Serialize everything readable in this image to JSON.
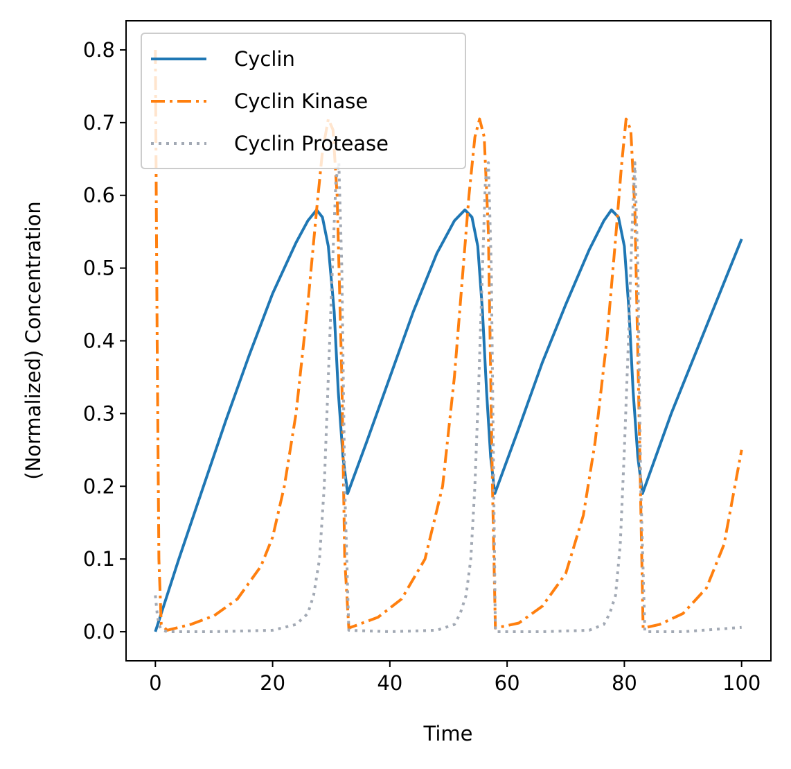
{
  "chart_data": {
    "type": "line",
    "title": "",
    "xlabel": "Time",
    "ylabel": "(Normalized) Concentration",
    "xlim": [
      -5,
      105
    ],
    "ylim": [
      -0.04,
      0.84
    ],
    "xticks": [
      0,
      20,
      40,
      60,
      80,
      100
    ],
    "yticks": [
      0.0,
      0.1,
      0.2,
      0.3,
      0.4,
      0.5,
      0.6,
      0.7,
      0.8
    ],
    "xtick_labels": [
      "0",
      "20",
      "40",
      "60",
      "80",
      "100"
    ],
    "ytick_labels": [
      "0.0",
      "0.1",
      "0.2",
      "0.3",
      "0.4",
      "0.5",
      "0.6",
      "0.7",
      "0.8"
    ],
    "grid": false,
    "legend_position": "top-left",
    "series": [
      {
        "name": "Cyclin",
        "color": "#1f77b4",
        "style": "solid",
        "x": [
          0,
          4,
          8,
          12,
          16,
          20,
          24,
          26,
          27.5,
          28.5,
          29.5,
          30.5,
          31.2,
          32,
          32.8,
          36,
          40,
          44,
          48,
          51,
          52.8,
          54,
          55,
          55.8,
          56.5,
          57.2,
          57.9,
          62,
          66,
          70,
          74,
          76.5,
          77.8,
          79,
          80,
          80.8,
          81.5,
          82.3,
          83.1,
          88,
          94,
          100
        ],
        "y": [
          0.0,
          0.1,
          0.195,
          0.29,
          0.38,
          0.465,
          0.535,
          0.565,
          0.58,
          0.57,
          0.53,
          0.44,
          0.33,
          0.24,
          0.19,
          0.26,
          0.35,
          0.44,
          0.52,
          0.565,
          0.58,
          0.57,
          0.53,
          0.44,
          0.33,
          0.24,
          0.19,
          0.28,
          0.37,
          0.45,
          0.525,
          0.565,
          0.58,
          0.57,
          0.53,
          0.44,
          0.33,
          0.24,
          0.19,
          0.3,
          0.42,
          0.54
        ]
      },
      {
        "name": "Cyclin Kinase",
        "color": "#ff7f0e",
        "style": "dashdot",
        "x": [
          0,
          0.3,
          0.6,
          1,
          2,
          6,
          10,
          14,
          18,
          20,
          22,
          24,
          26,
          27.5,
          28.5,
          29.5,
          30.3,
          31,
          31.8,
          32.3,
          33,
          38,
          42,
          46,
          49,
          51,
          52.5,
          53.5,
          54.5,
          55.3,
          56.1,
          56.8,
          57.5,
          58,
          62,
          66,
          70,
          73,
          75,
          77,
          78.5,
          79.5,
          80.3,
          81.1,
          81.8,
          82.5,
          83.2,
          86,
          90,
          94,
          97,
          100
        ],
        "y": [
          0.8,
          0.4,
          0.1,
          0.01,
          0.002,
          0.01,
          0.022,
          0.045,
          0.09,
          0.13,
          0.2,
          0.3,
          0.45,
          0.58,
          0.66,
          0.705,
          0.69,
          0.6,
          0.35,
          0.1,
          0.005,
          0.02,
          0.045,
          0.1,
          0.2,
          0.35,
          0.5,
          0.6,
          0.68,
          0.705,
          0.68,
          0.55,
          0.2,
          0.005,
          0.012,
          0.035,
          0.08,
          0.16,
          0.26,
          0.4,
          0.54,
          0.64,
          0.705,
          0.69,
          0.58,
          0.3,
          0.005,
          0.01,
          0.025,
          0.06,
          0.12,
          0.25
        ]
      },
      {
        "name": "Cyclin Protease",
        "color": "#a2a9b4",
        "style": "dotted",
        "x": [
          0,
          0.3,
          0.6,
          1,
          2,
          10,
          20,
          24,
          26,
          27,
          28,
          28.8,
          29.5,
          30.2,
          30.8,
          31.3,
          31.8,
          32.3,
          33,
          40,
          48,
          51,
          52,
          53,
          53.8,
          54.5,
          55.2,
          55.8,
          56.3,
          56.8,
          57.3,
          58,
          66,
          74,
          76.5,
          77.5,
          78.5,
          79.3,
          80,
          80.7,
          81.3,
          81.8,
          82.3,
          82.8,
          83.5,
          90,
          100
        ],
        "y": [
          0.05,
          0.025,
          0.01,
          0.003,
          0.0,
          0.0,
          0.002,
          0.01,
          0.025,
          0.05,
          0.1,
          0.2,
          0.35,
          0.5,
          0.62,
          0.645,
          0.5,
          0.2,
          0.002,
          0.0,
          0.002,
          0.01,
          0.025,
          0.05,
          0.1,
          0.2,
          0.35,
          0.5,
          0.62,
          0.645,
          0.5,
          0.0,
          0.0,
          0.002,
          0.01,
          0.025,
          0.05,
          0.12,
          0.25,
          0.4,
          0.55,
          0.645,
          0.5,
          0.2,
          0.0,
          0.0,
          0.006
        ]
      }
    ]
  }
}
